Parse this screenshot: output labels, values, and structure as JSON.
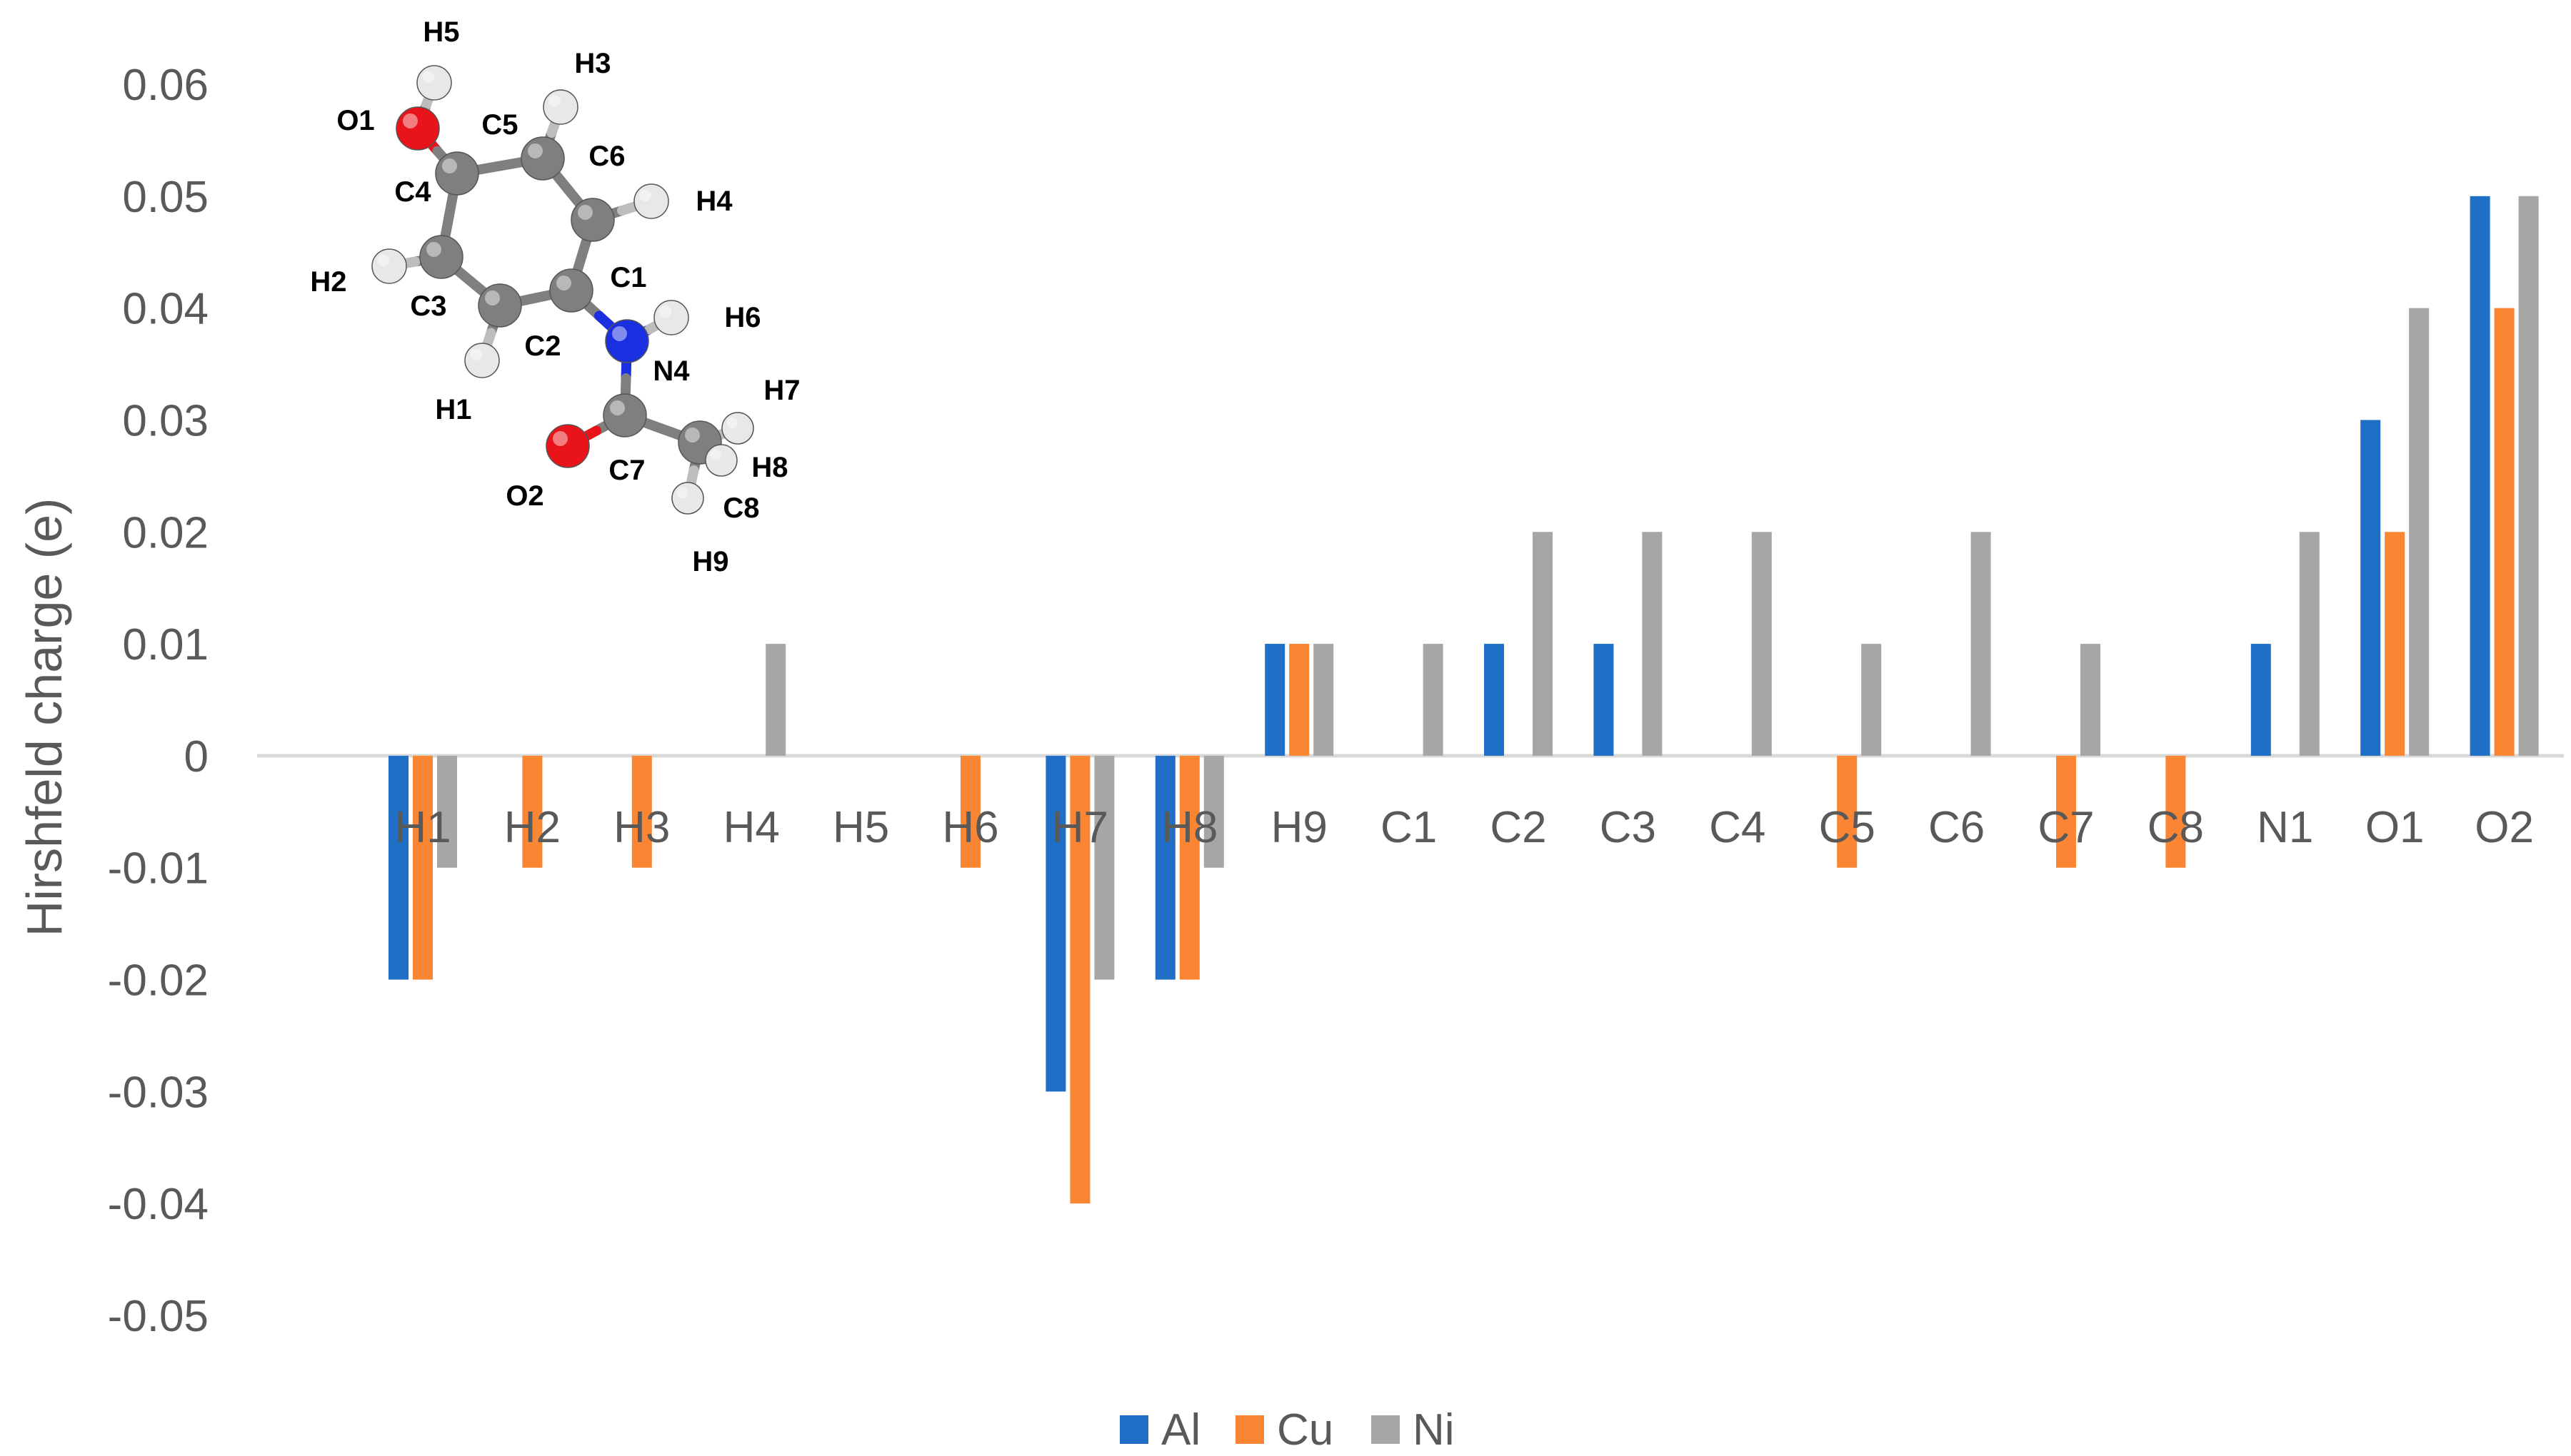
{
  "chart_data": {
    "type": "bar",
    "ylabel": "Hirshfeld charge (e)",
    "ylim": [
      -0.05,
      0.06
    ],
    "yticks": [
      "0.06",
      "0.05",
      "0.04",
      "0.03",
      "0.02",
      "0.01",
      "0",
      "-0.01",
      "-0.02",
      "-0.03",
      "-0.04",
      "-0.05"
    ],
    "categories": [
      "H1",
      "H2",
      "H3",
      "H4",
      "H5",
      "H6",
      "H7",
      "H8",
      "H9",
      "C1",
      "C2",
      "C3",
      "C4",
      "C5",
      "C6",
      "C7",
      "C8",
      "N1",
      "O1",
      "O2"
    ],
    "series": [
      {
        "name": "Al",
        "color": "#1F6FC6",
        "values": [
          -0.02,
          0,
          0,
          0,
          0,
          0,
          -0.03,
          -0.02,
          0.01,
          0,
          0.01,
          0.01,
          0,
          0,
          0,
          0,
          0,
          0.01,
          0.03,
          0.05
        ]
      },
      {
        "name": "Cu",
        "color": "#FA8532",
        "values": [
          -0.02,
          -0.01,
          -0.01,
          0,
          0,
          -0.01,
          -0.04,
          -0.02,
          0.01,
          0,
          0,
          0,
          0,
          -0.01,
          0,
          -0.01,
          -0.01,
          0,
          0.02,
          0.04
        ]
      },
      {
        "name": "Ni",
        "color": "#A6A6A6",
        "values": [
          -0.01,
          0,
          0,
          0.01,
          0,
          0,
          -0.02,
          -0.01,
          0.01,
          0.01,
          0.02,
          0.02,
          0.02,
          0.01,
          0.02,
          0.01,
          0,
          0.02,
          0.04,
          0.05
        ]
      }
    ],
    "grid": false,
    "legend": "bottom"
  },
  "inset": {
    "atom_labels": [
      "H5",
      "O1",
      "C5",
      "H3",
      "C6",
      "H4",
      "C4",
      "C1",
      "H2",
      "C3",
      "C2",
      "H6",
      "N4",
      "H1",
      "H7",
      "H8",
      "C7",
      "O2",
      "C8",
      "H9"
    ],
    "atom_colors": {
      "carbon": "#7F7F7F",
      "hydrogen": "#E8E8E8",
      "oxygen": "#E8141A",
      "nitrogen": "#1A2FE0"
    }
  }
}
